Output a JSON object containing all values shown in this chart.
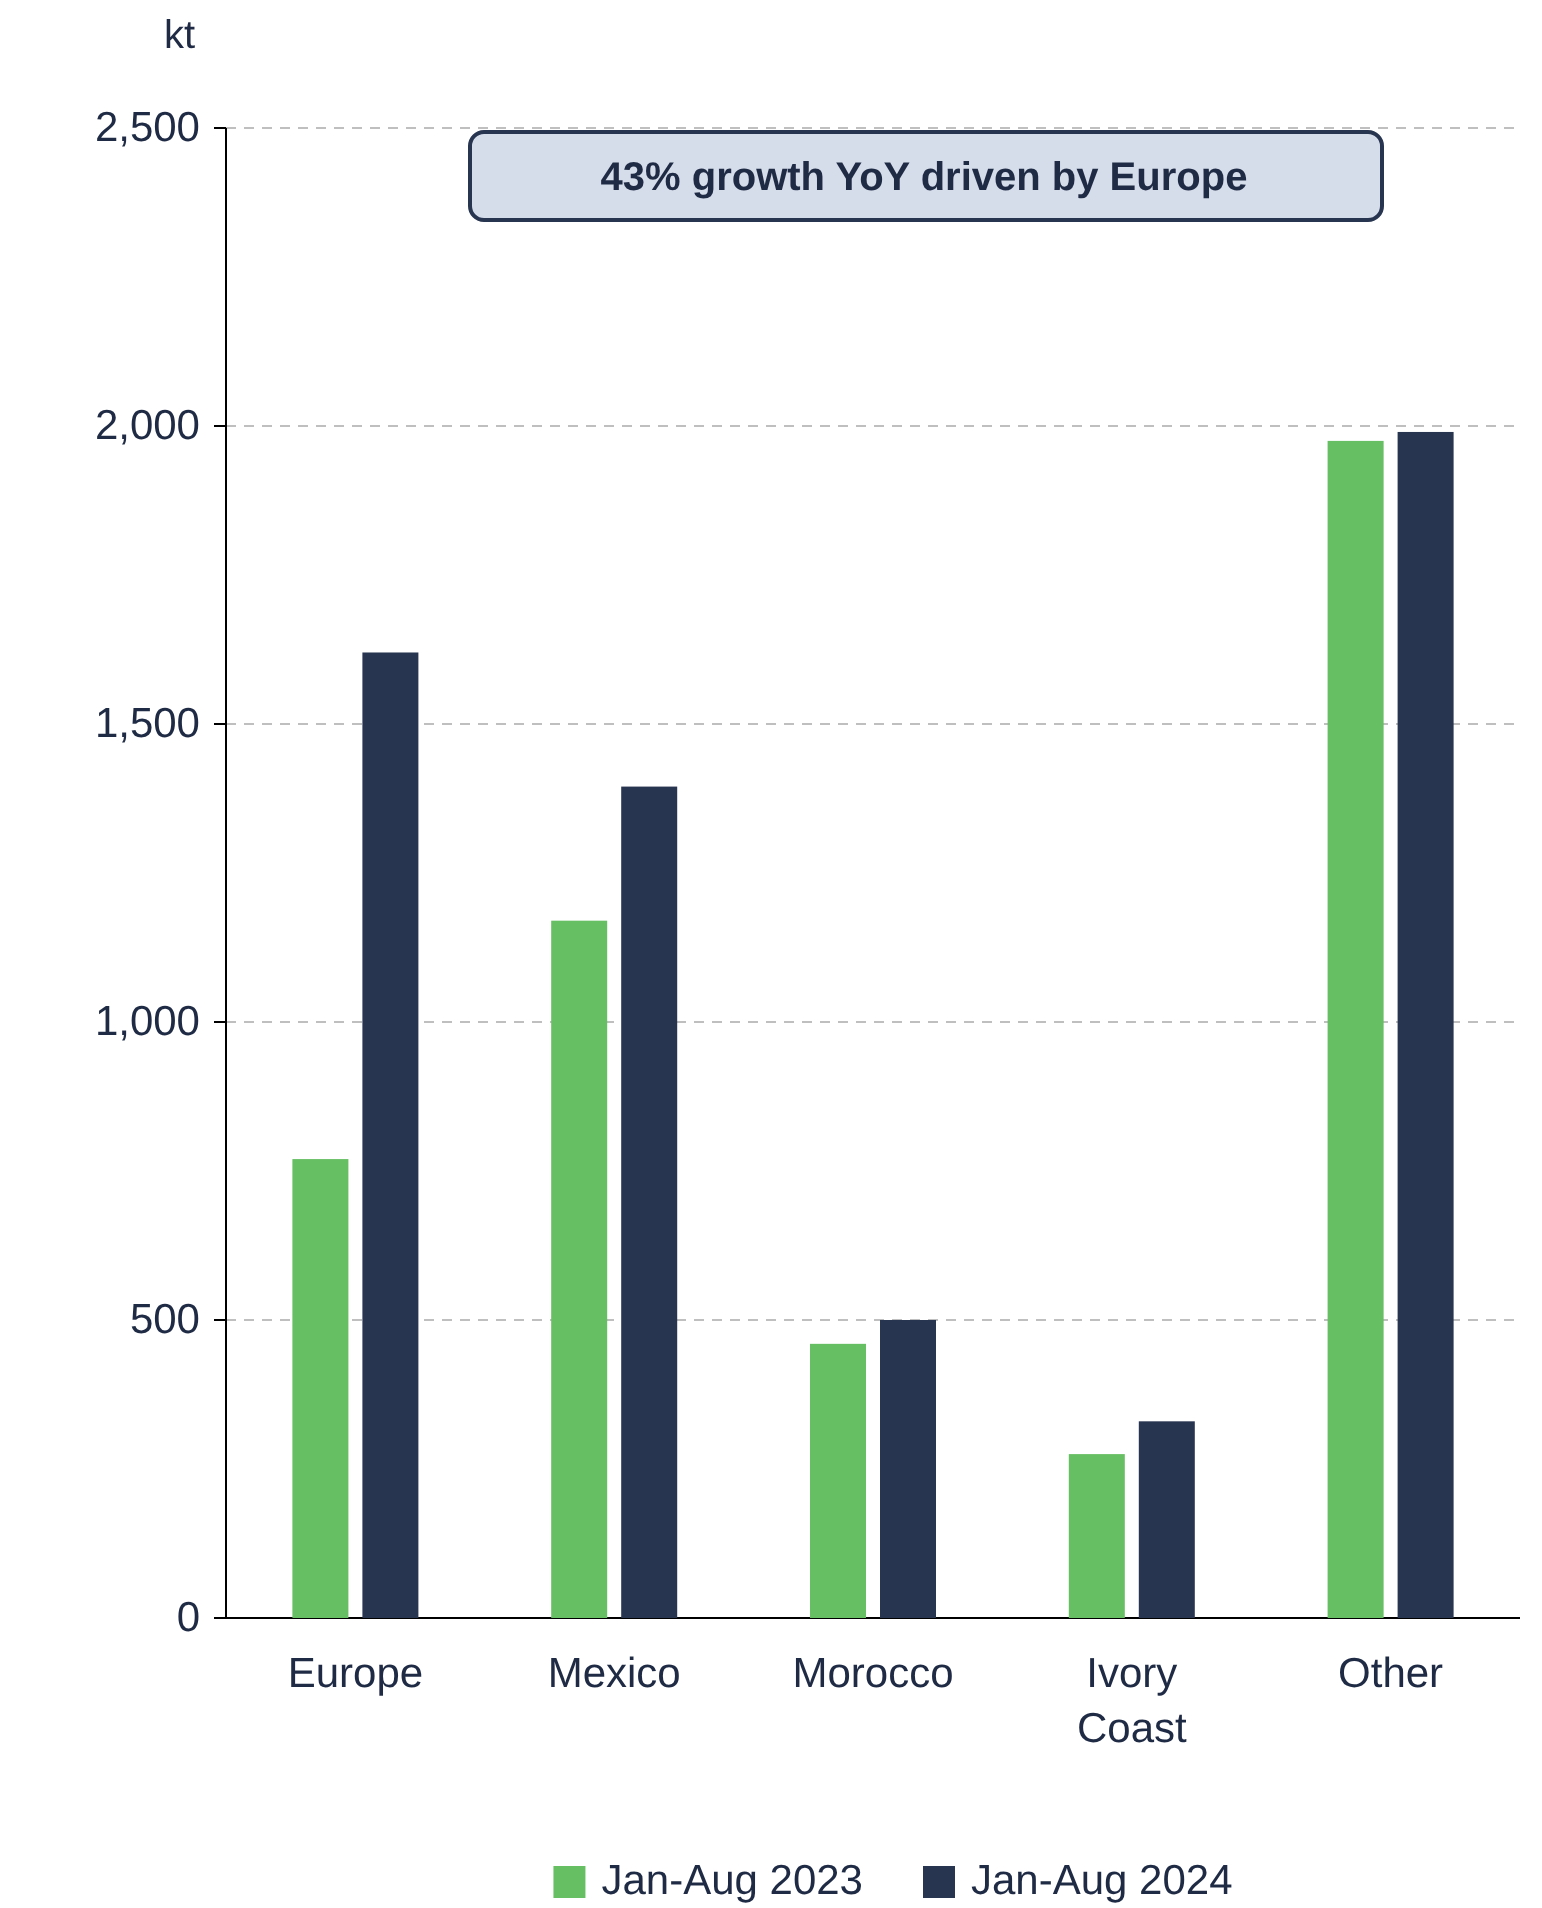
{
  "chart_data": {
    "type": "bar",
    "ylabel": "kt",
    "categories": [
      "Europe",
      "Mexico",
      "Morocco",
      "Ivory Coast",
      "Other"
    ],
    "series": [
      {
        "name": "Jan-Aug 2023",
        "color": "#66bf63",
        "values": [
          770,
          1170,
          460,
          275,
          1975
        ]
      },
      {
        "name": "Jan-Aug 2024",
        "color": "#283550",
        "values": [
          1620,
          1395,
          500,
          330,
          1990
        ]
      }
    ],
    "ylim": [
      0,
      2500
    ],
    "yticks": [
      0,
      {
        "value": 500,
        "label": "500"
      },
      {
        "value": 1000,
        "label": "1,000"
      },
      {
        "value": 1500,
        "label": "1,500"
      },
      {
        "value": 2000,
        "label": "2,000"
      },
      {
        "value": 2500,
        "label": "2,500"
      }
    ],
    "grid": "y",
    "legend": "bottom",
    "annotations": [
      "43% growth YoY driven by Europe"
    ]
  }
}
